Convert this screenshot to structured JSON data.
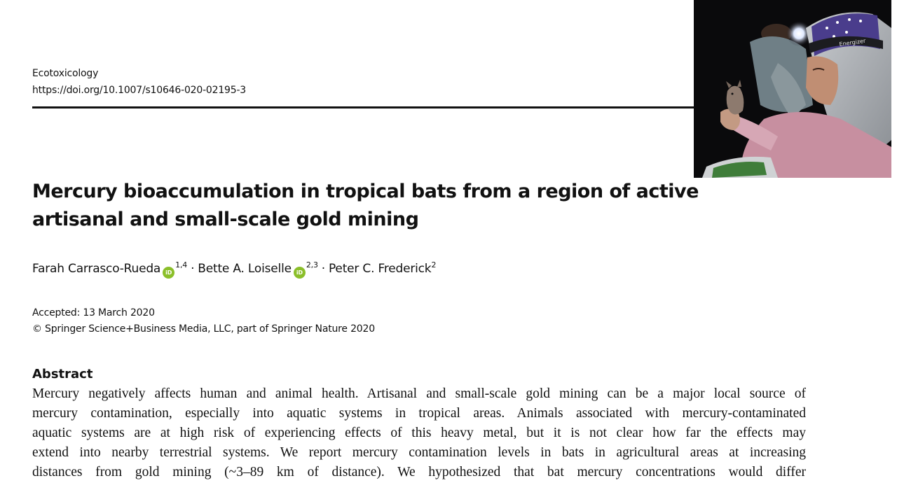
{
  "journal": {
    "name": "Ecotoxicology",
    "doi": "https://doi.org/10.1007/s10646-020-02195-3"
  },
  "photo": {
    "icon": "researcher-holding-bat-photo",
    "headlamp_text": "Energizer"
  },
  "title": {
    "line1": "Mercury bioaccumulation in tropical bats from a region of active",
    "line2": "artisanal and small-scale gold mining"
  },
  "authors": [
    {
      "name": "Farah Carrasco-Rueda",
      "affiliation": "1,4",
      "orcid_label": "iD"
    },
    {
      "name": "Bette A. Loiselle",
      "affiliation": "2,3",
      "orcid_label": "iD"
    },
    {
      "name": "Peter C. Frederick",
      "affiliation": "2"
    }
  ],
  "author_separator": "·",
  "meta": {
    "accepted": "Accepted: 13 March 2020",
    "copyright": "© Springer Science+Business Media, LLC, part of Springer Nature 2020"
  },
  "abstract": {
    "heading": "Abstract",
    "lines": [
      "Mercury negatively affects human and animal health. Artisanal and small-scale gold mining can be a major local source of",
      "mercury contamination, especially into aquatic systems in tropical areas. Animals associated with mercury-contaminated",
      "aquatic systems are at high risk of experiencing effects of this heavy metal, but it is not clear how far the effects may",
      "extend into nearby terrestrial systems. We report mercury contamination levels in bats in agricultural areas at increasing",
      "distances from gold mining (~3–89 km of distance). We hypothesized that bat mercury concentrations would differ"
    ]
  },
  "colors": {
    "orcid": "#8bbf2a",
    "rule": "#111111"
  }
}
